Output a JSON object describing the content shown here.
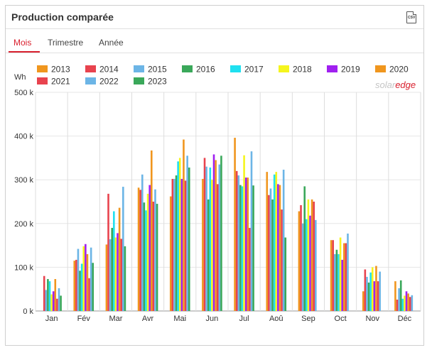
{
  "panel": {
    "title": "Production comparée",
    "csv_label": "CSV"
  },
  "tabs": [
    {
      "label": "Mois",
      "active": true
    },
    {
      "label": "Trimestre",
      "active": false
    },
    {
      "label": "Année",
      "active": false
    }
  ],
  "logo": {
    "part1": "solar",
    "part2": "edge"
  },
  "chart_data": {
    "type": "bar",
    "ylabel": "Wh",
    "ylim": [
      0,
      500000
    ],
    "yticks": [
      {
        "value": 0,
        "label": "0 k"
      },
      {
        "value": 100000,
        "label": "100 k"
      },
      {
        "value": 200000,
        "label": "200 k"
      },
      {
        "value": 300000,
        "label": "300 k"
      },
      {
        "value": 400000,
        "label": "400 k"
      },
      {
        "value": 500000,
        "label": "500 k"
      }
    ],
    "grid": true,
    "legend_position": "top",
    "categories": [
      "Jan",
      "Fév",
      "Mar",
      "Avr",
      "Mai",
      "Jun",
      "Jul",
      "Aoû",
      "Sep",
      "Oct",
      "Nov",
      "Déc"
    ],
    "series": [
      {
        "name": "2013",
        "color": "#f0961e",
        "values": [
          0,
          115000,
          152000,
          282000,
          262000,
          302000,
          396000,
          318000,
          228000,
          162000,
          45000,
          68000
        ]
      },
      {
        "name": "2014",
        "color": "#e8434e",
        "values": [
          80000,
          117000,
          268000,
          277000,
          302000,
          350000,
          320000,
          265000,
          242000,
          162000,
          95000,
          26000
        ]
      },
      {
        "name": "2015",
        "color": "#6cb5e6",
        "values": [
          48000,
          142000,
          164000,
          312000,
          302000,
          330000,
          310000,
          280000,
          200000,
          130000,
          78000,
          52000
        ]
      },
      {
        "name": "2016",
        "color": "#3aa85a",
        "values": [
          73000,
          92000,
          190000,
          248000,
          310000,
          255000,
          288000,
          255000,
          285000,
          140000,
          65000,
          70000
        ]
      },
      {
        "name": "2017",
        "color": "#1fe0f0",
        "values": [
          68000,
          108000,
          228000,
          230000,
          342000,
          328000,
          285000,
          312000,
          210000,
          130000,
          88000,
          28000
        ]
      },
      {
        "name": "2018",
        "color": "#f5f51e",
        "values": [
          38000,
          148000,
          168000,
          268000,
          350000,
          300000,
          356000,
          318000,
          255000,
          168000,
          100000,
          35000
        ]
      },
      {
        "name": "2019",
        "color": "#a020f0",
        "values": [
          45000,
          153000,
          178000,
          288000,
          302000,
          358000,
          305000,
          290000,
          218000,
          117000,
          68000,
          45000
        ]
      },
      {
        "name": "2020",
        "color": "#f0961e",
        "values": [
          73000,
          130000,
          236000,
          367000,
          392000,
          345000,
          305000,
          288000,
          255000,
          155000,
          103000,
          40000
        ]
      },
      {
        "name": "2021",
        "color": "#e8434e",
        "values": [
          28000,
          75000,
          165000,
          250000,
          298000,
          290000,
          190000,
          232000,
          250000,
          155000,
          68000,
          32000
        ]
      },
      {
        "name": "2022",
        "color": "#6cb5e6",
        "values": [
          52000,
          145000,
          284000,
          278000,
          355000,
          335000,
          365000,
          323000,
          208000,
          177000,
          90000,
          36000
        ]
      },
      {
        "name": "2023",
        "color": "#3aa85a",
        "values": [
          35000,
          110000,
          148000,
          245000,
          328000,
          355000,
          287000,
          168000,
          0,
          0,
          0,
          0
        ]
      }
    ]
  }
}
